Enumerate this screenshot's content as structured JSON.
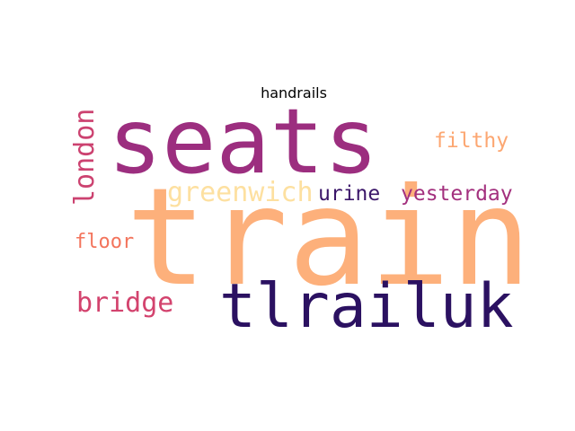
{
  "title": "handrails",
  "words": {
    "train": "train",
    "seats": "seats",
    "tlrailuk": "tlrailuk",
    "greenwich": "greenwich",
    "urine": "urine",
    "yesterday": "yesterday",
    "filthy": "filthy",
    "london": "london",
    "floor": "floor",
    "bridge": "bridge"
  },
  "colors": {
    "train": "#fdb07b",
    "seats": "#9c2e7f",
    "tlrailuk": "#2b1161",
    "greenwich": "#fde0a0",
    "urine": "#3b1669",
    "yesterday": "#a3307e",
    "filthy": "#fca772",
    "london": "#cc4270",
    "floor": "#f3745c",
    "bridge": "#d3436e"
  }
}
